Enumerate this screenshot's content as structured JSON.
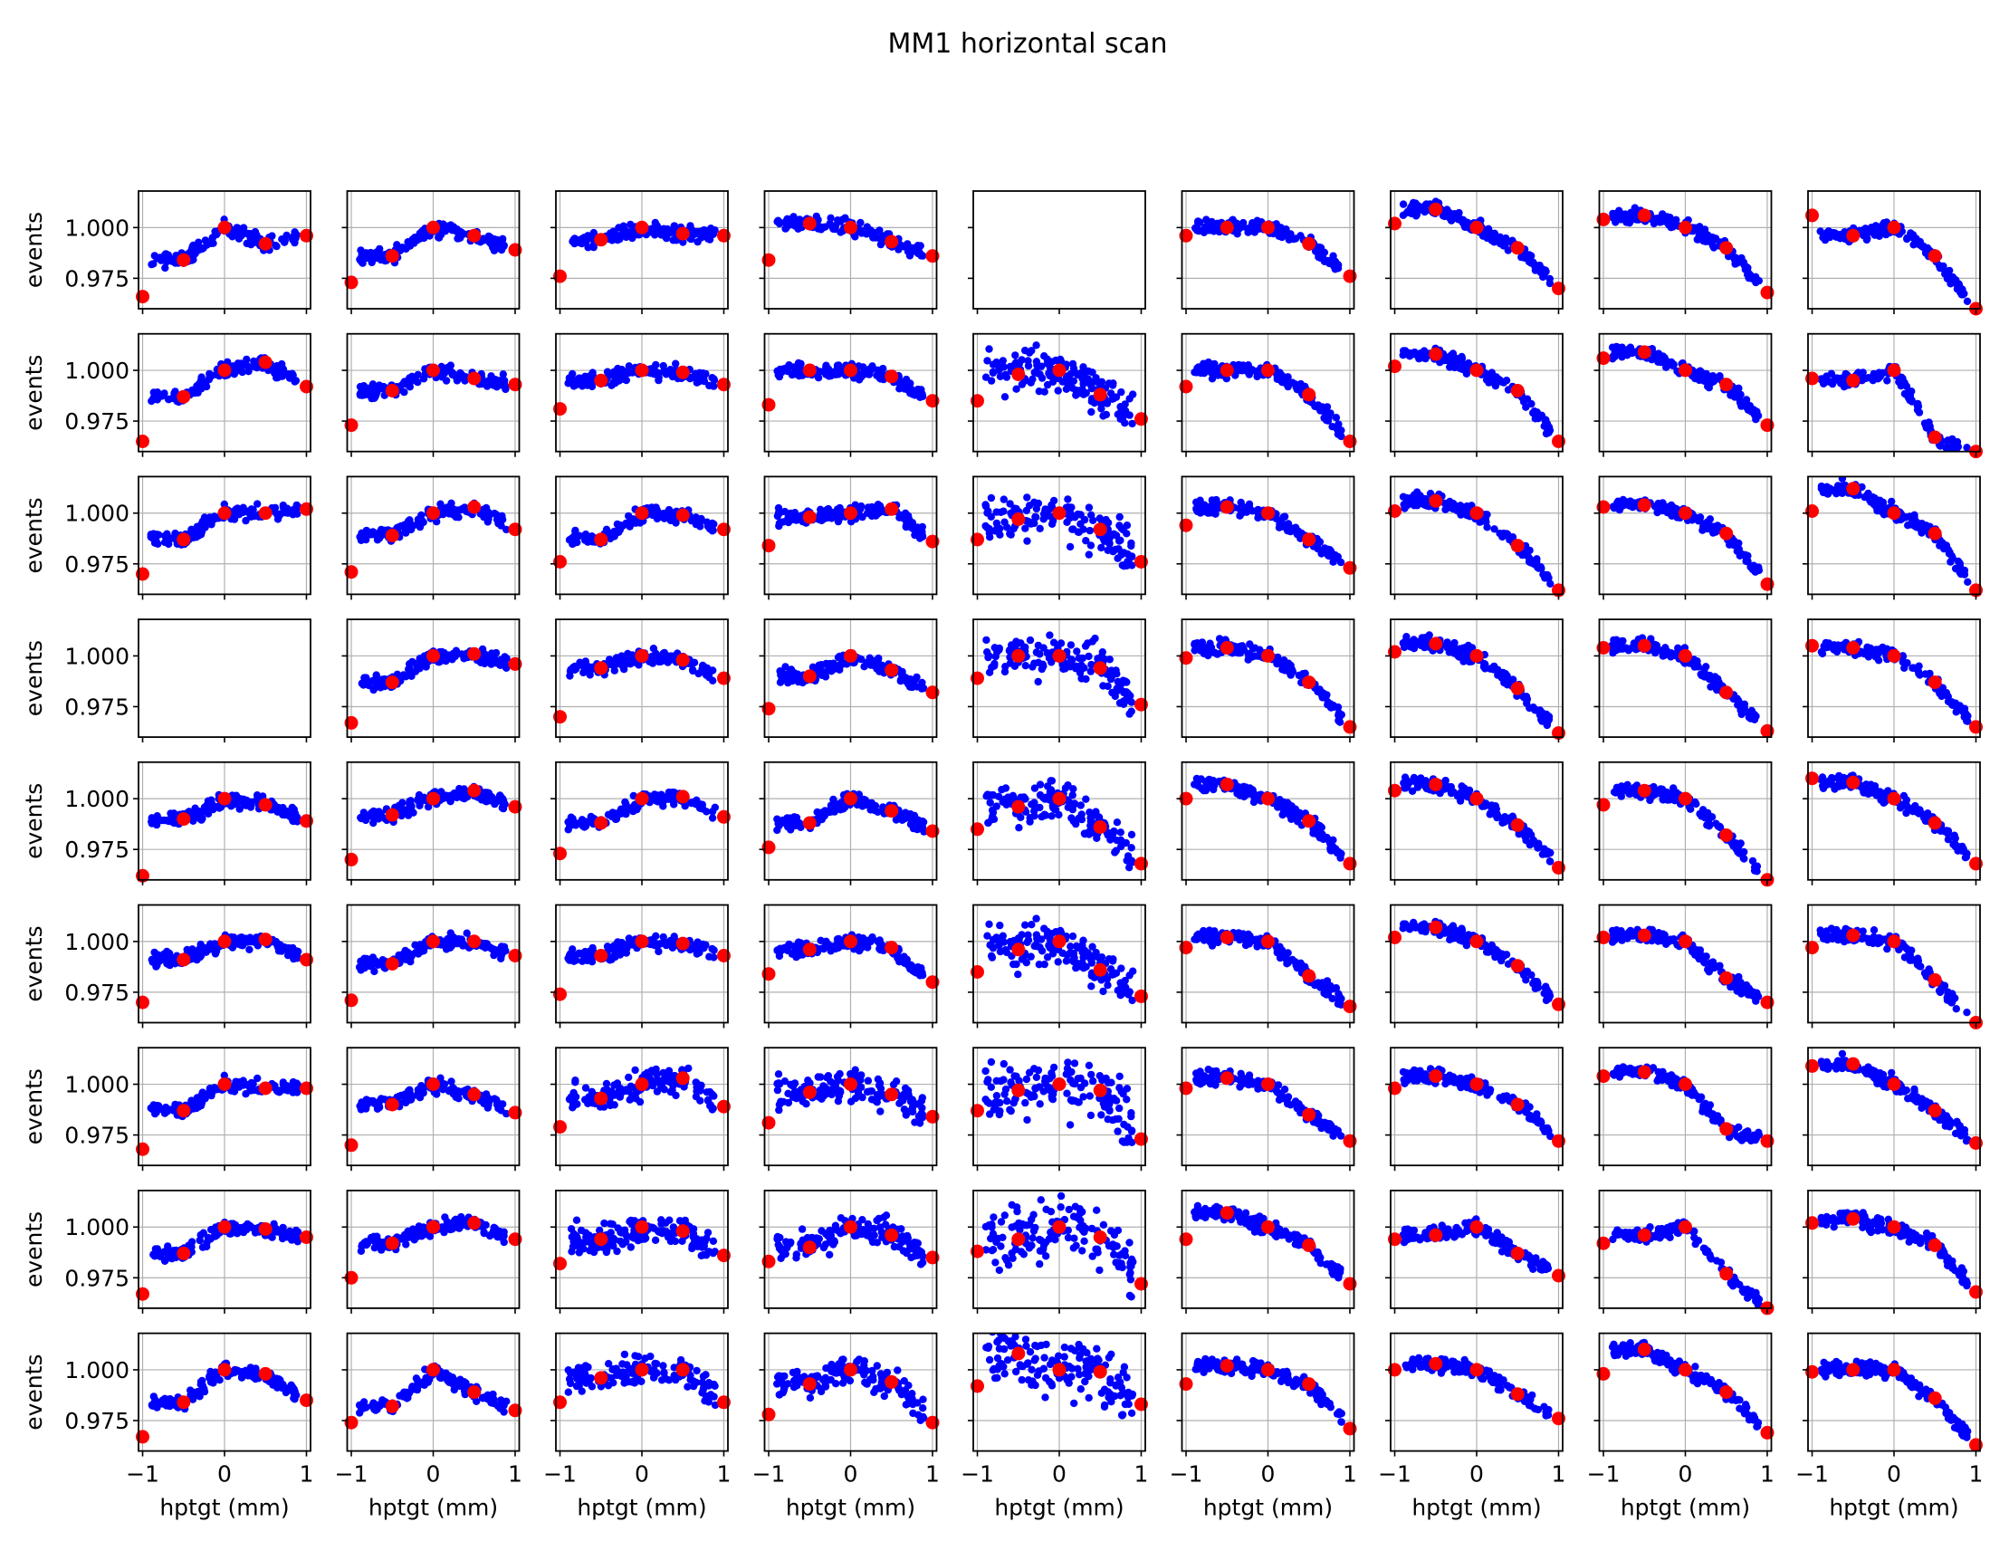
{
  "figure": {
    "title": "MM1 horizontal scan",
    "colors": {
      "scan_points": "#0000ff",
      "summary_points": "#ff0000",
      "grid": "#b0b0b0",
      "axes": "#000000"
    }
  },
  "chart_data": {
    "type": "scatter",
    "title": "MM1 horizontal scan",
    "layout_grid": {
      "rows": 9,
      "cols": 9
    },
    "xlabel": "hptgt (mm)",
    "ylabel": "events",
    "xlim": [
      -1.05,
      1.05
    ],
    "ylim": [
      0.96,
      1.018
    ],
    "xticks": [
      -1,
      0,
      1
    ],
    "xtick_labels": [
      "−1",
      "0",
      "1"
    ],
    "yticks": [
      0.975,
      1.0
    ],
    "ytick_labels": [
      "0.975",
      "1.000"
    ],
    "grid": true,
    "empty_panels": [
      [
        0,
        4
      ],
      [
        3,
        0
      ]
    ],
    "series": [
      {
        "name": "",
        "marker": "small dot",
        "color": "#0000ff"
      },
      {
        "name": "",
        "marker": "large dot",
        "color": "#ff0000"
      }
    ],
    "summary_x": [
      -1,
      -0.5,
      0,
      0.5,
      1
    ],
    "summary_y": [
      [
        [
          0.966,
          0.984,
          1.0,
          0.992,
          0.996
        ],
        [
          0.973,
          0.986,
          1.0,
          0.996,
          0.989
        ],
        [
          0.976,
          0.994,
          1.0,
          0.997,
          0.996
        ],
        [
          0.984,
          1.002,
          1.0,
          0.993,
          0.986
        ],
        null,
        [
          0.996,
          1.0,
          1.0,
          0.992,
          0.976
        ],
        [
          1.002,
          1.009,
          1.0,
          0.99,
          0.97
        ],
        [
          1.004,
          1.006,
          1.0,
          0.99,
          0.968
        ],
        [
          1.006,
          0.996,
          1.0,
          0.986,
          0.96
        ]
      ],
      [
        [
          0.965,
          0.987,
          1.0,
          1.004,
          0.992
        ],
        [
          0.973,
          0.99,
          1.0,
          0.996,
          0.993
        ],
        [
          0.981,
          0.995,
          1.0,
          0.999,
          0.993
        ],
        [
          0.983,
          1.0,
          1.0,
          0.997,
          0.985
        ],
        [
          0.985,
          0.998,
          1.0,
          0.988,
          0.976
        ],
        [
          0.992,
          1.0,
          1.0,
          0.988,
          0.965
        ],
        [
          1.002,
          1.008,
          1.0,
          0.99,
          0.965
        ],
        [
          1.006,
          1.009,
          1.0,
          0.993,
          0.973
        ],
        [
          0.996,
          0.995,
          1.0,
          0.967,
          0.96
        ]
      ],
      [
        [
          0.97,
          0.987,
          1.0,
          1.0,
          1.002
        ],
        [
          0.971,
          0.989,
          1.0,
          1.003,
          0.992
        ],
        [
          0.976,
          0.987,
          1.0,
          0.999,
          0.992
        ],
        [
          0.984,
          0.998,
          1.0,
          1.002,
          0.986
        ],
        [
          0.987,
          0.997,
          1.0,
          0.992,
          0.976
        ],
        [
          0.994,
          1.003,
          1.0,
          0.987,
          0.973
        ],
        [
          1.001,
          1.006,
          1.0,
          0.984,
          0.962
        ],
        [
          1.003,
          1.004,
          1.0,
          0.99,
          0.965
        ],
        [
          1.001,
          1.012,
          1.0,
          0.99,
          0.962
        ]
      ],
      [
        null,
        [
          0.967,
          0.987,
          1.0,
          1.001,
          0.996
        ],
        [
          0.97,
          0.994,
          1.0,
          0.998,
          0.989
        ],
        [
          0.974,
          0.99,
          1.0,
          0.993,
          0.982
        ],
        [
          0.989,
          1.0,
          1.0,
          0.994,
          0.976
        ],
        [
          0.999,
          1.004,
          1.0,
          0.987,
          0.965
        ],
        [
          1.002,
          1.006,
          1.0,
          0.984,
          0.962
        ],
        [
          1.004,
          1.005,
          1.0,
          0.982,
          0.963
        ],
        [
          1.005,
          1.004,
          1.0,
          0.987,
          0.965
        ]
      ],
      [
        [
          0.962,
          0.99,
          1.0,
          0.997,
          0.989
        ],
        [
          0.97,
          0.992,
          1.0,
          1.004,
          0.996
        ],
        [
          0.973,
          0.988,
          1.0,
          1.001,
          0.991
        ],
        [
          0.976,
          0.988,
          1.0,
          0.994,
          0.984
        ],
        [
          0.985,
          0.996,
          1.0,
          0.986,
          0.968
        ],
        [
          1.0,
          1.007,
          1.0,
          0.989,
          0.968
        ],
        [
          1.004,
          1.007,
          1.0,
          0.987,
          0.966
        ],
        [
          0.997,
          1.004,
          1.0,
          0.982,
          0.96
        ],
        [
          1.01,
          1.008,
          1.0,
          0.988,
          0.968
        ]
      ],
      [
        [
          0.97,
          0.991,
          1.0,
          1.001,
          0.991
        ],
        [
          0.971,
          0.989,
          1.0,
          1.0,
          0.993
        ],
        [
          0.974,
          0.993,
          1.0,
          0.999,
          0.993
        ],
        [
          0.984,
          0.996,
          1.0,
          0.997,
          0.98
        ],
        [
          0.985,
          0.996,
          1.0,
          0.986,
          0.973
        ],
        [
          0.997,
          1.002,
          1.0,
          0.983,
          0.968
        ],
        [
          1.002,
          1.007,
          1.0,
          0.988,
          0.969
        ],
        [
          1.002,
          1.003,
          1.0,
          0.982,
          0.97
        ],
        [
          0.997,
          1.003,
          1.0,
          0.981,
          0.96
        ]
      ],
      [
        [
          0.968,
          0.987,
          1.0,
          0.998,
          0.998
        ],
        [
          0.97,
          0.99,
          1.0,
          0.995,
          0.986
        ],
        [
          0.979,
          0.993,
          1.0,
          1.003,
          0.989
        ],
        [
          0.981,
          0.996,
          1.0,
          0.995,
          0.984
        ],
        [
          0.987,
          0.997,
          1.0,
          0.997,
          0.973
        ],
        [
          0.998,
          1.003,
          1.0,
          0.985,
          0.972
        ],
        [
          0.998,
          1.004,
          1.0,
          0.99,
          0.972
        ],
        [
          1.004,
          1.006,
          1.0,
          0.978,
          0.972
        ],
        [
          1.009,
          1.01,
          1.0,
          0.987,
          0.971
        ]
      ],
      [
        [
          0.967,
          0.987,
          1.0,
          0.999,
          0.995
        ],
        [
          0.975,
          0.992,
          1.0,
          1.002,
          0.994
        ],
        [
          0.982,
          0.994,
          1.0,
          0.998,
          0.986
        ],
        [
          0.983,
          0.99,
          1.0,
          0.996,
          0.985
        ],
        [
          0.988,
          0.994,
          1.0,
          0.995,
          0.972
        ],
        [
          0.994,
          1.007,
          1.0,
          0.991,
          0.972
        ],
        [
          0.994,
          0.996,
          1.0,
          0.987,
          0.976
        ],
        [
          0.992,
          0.996,
          1.0,
          0.977,
          0.96
        ],
        [
          1.002,
          1.004,
          1.0,
          0.991,
          0.968
        ]
      ],
      [
        [
          0.967,
          0.984,
          1.0,
          0.998,
          0.985
        ],
        [
          0.974,
          0.982,
          1.0,
          0.989,
          0.98
        ],
        [
          0.984,
          0.996,
          1.0,
          1.0,
          0.984
        ],
        [
          0.978,
          0.993,
          1.0,
          0.994,
          0.974
        ],
        [
          0.992,
          1.008,
          1.0,
          0.999,
          0.983
        ],
        [
          0.993,
          1.002,
          1.0,
          0.993,
          0.971
        ],
        [
          1.0,
          1.003,
          1.0,
          0.988,
          0.976
        ],
        [
          0.998,
          1.01,
          1.0,
          0.989,
          0.969
        ],
        [
          0.999,
          1.0,
          1.0,
          0.986,
          0.963
        ]
      ]
    ]
  }
}
